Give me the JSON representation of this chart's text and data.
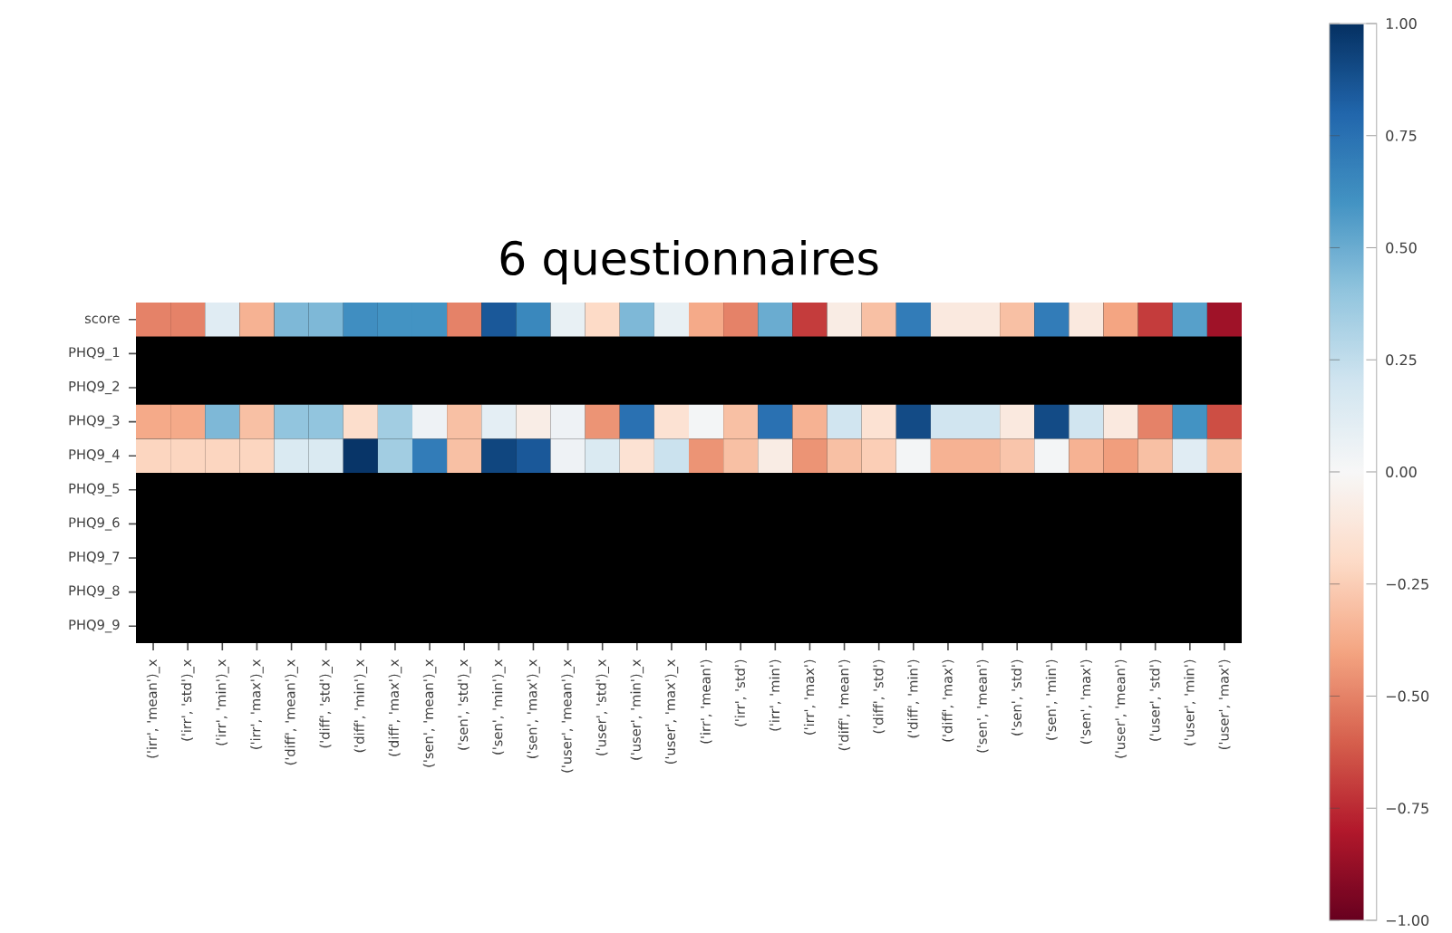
{
  "chart_data": {
    "type": "heatmap",
    "title": "6 questionnaires",
    "categories": [
      "('irr', 'mean')_x",
      "('irr', 'std')_x",
      "('irr', 'min')_x",
      "('irr', 'max')_x",
      "('diff', 'mean')_x",
      "('diff', 'std')_x",
      "('diff', 'min')_x",
      "('diff', 'max')_x",
      "('sen', 'mean')_x",
      "('sen', 'std')_x",
      "('sen', 'min')_x",
      "('sen', 'max')_x",
      "('user', 'mean')_x",
      "('user', 'std')_x",
      "('user', 'min')_x",
      "('user', 'max')_x",
      "('irr', 'mean')",
      "('irr', 'std')",
      "('irr', 'min')",
      "('irr', 'max')",
      "('diff', 'mean')",
      "('diff', 'std')",
      "('diff', 'min')",
      "('diff', 'max')",
      "('sen', 'mean')",
      "('sen', 'std')",
      "('sen', 'min')",
      "('sen', 'max')",
      "('user', 'mean')",
      "('user', 'std')",
      "('user', 'min')",
      "('user', 'max')"
    ],
    "y_categories": [
      "score",
      "PHQ9_1",
      "PHQ9_2",
      "PHQ9_3",
      "PHQ9_4",
      "PHQ9_5",
      "PHQ9_6",
      "PHQ9_7",
      "PHQ9_8",
      "PHQ9_9"
    ],
    "cells": [
      [
        -0.5,
        -0.5,
        0.12,
        -0.35,
        0.45,
        0.45,
        0.62,
        0.6,
        0.6,
        -0.5,
        0.85,
        0.65,
        0.08,
        -0.2,
        0.45,
        0.08,
        -0.38,
        -0.5,
        0.5,
        -0.7,
        -0.08,
        -0.3,
        0.7,
        -0.1,
        -0.1,
        -0.3,
        0.7,
        -0.1,
        -0.4,
        -0.7,
        0.55,
        -0.85
      ],
      [
        null,
        null,
        null,
        null,
        null,
        null,
        null,
        null,
        null,
        null,
        null,
        null,
        null,
        null,
        null,
        null,
        null,
        null,
        null,
        null,
        null,
        null,
        null,
        null,
        null,
        null,
        null,
        null,
        null,
        null,
        null,
        null
      ],
      [
        null,
        null,
        null,
        null,
        null,
        null,
        null,
        null,
        null,
        null,
        null,
        null,
        null,
        null,
        null,
        null,
        null,
        null,
        null,
        null,
        null,
        null,
        null,
        null,
        null,
        null,
        null,
        null,
        null,
        null,
        null,
        null
      ],
      [
        -0.38,
        -0.38,
        0.45,
        -0.3,
        0.4,
        0.4,
        -0.18,
        0.35,
        0.05,
        -0.3,
        0.1,
        -0.07,
        0.05,
        -0.45,
        0.75,
        -0.15,
        0.02,
        -0.3,
        0.75,
        -0.35,
        0.2,
        -0.15,
        0.9,
        0.2,
        0.2,
        -0.1,
        0.9,
        0.2,
        -0.1,
        -0.5,
        0.6,
        -0.65
      ],
      [
        -0.22,
        -0.22,
        -0.22,
        -0.22,
        0.15,
        0.15,
        0.98,
        0.35,
        0.7,
        -0.3,
        0.92,
        0.85,
        0.05,
        0.15,
        -0.15,
        0.22,
        -0.45,
        -0.3,
        -0.08,
        -0.45,
        -0.3,
        -0.25,
        0.02,
        -0.35,
        -0.35,
        -0.28,
        0.02,
        -0.35,
        -0.42,
        -0.3,
        0.12,
        -0.3
      ],
      [
        null,
        null,
        null,
        null,
        null,
        null,
        null,
        null,
        null,
        null,
        null,
        null,
        null,
        null,
        null,
        null,
        null,
        null,
        null,
        null,
        null,
        null,
        null,
        null,
        null,
        null,
        null,
        null,
        null,
        null,
        null,
        null
      ],
      [
        null,
        null,
        null,
        null,
        null,
        null,
        null,
        null,
        null,
        null,
        null,
        null,
        null,
        null,
        null,
        null,
        null,
        null,
        null,
        null,
        null,
        null,
        null,
        null,
        null,
        null,
        null,
        null,
        null,
        null,
        null,
        null
      ],
      [
        null,
        null,
        null,
        null,
        null,
        null,
        null,
        null,
        null,
        null,
        null,
        null,
        null,
        null,
        null,
        null,
        null,
        null,
        null,
        null,
        null,
        null,
        null,
        null,
        null,
        null,
        null,
        null,
        null,
        null,
        null,
        null
      ],
      [
        null,
        null,
        null,
        null,
        null,
        null,
        null,
        null,
        null,
        null,
        null,
        null,
        null,
        null,
        null,
        null,
        null,
        null,
        null,
        null,
        null,
        null,
        null,
        null,
        null,
        null,
        null,
        null,
        null,
        null,
        null,
        null
      ],
      [
        null,
        null,
        null,
        null,
        null,
        null,
        null,
        null,
        null,
        null,
        null,
        null,
        null,
        null,
        null,
        null,
        null,
        null,
        null,
        null,
        null,
        null,
        null,
        null,
        null,
        null,
        null,
        null,
        null,
        null,
        null,
        null
      ]
    ],
    "clim": [
      -1,
      1
    ],
    "cticks": [
      {
        "value": -1,
        "label": "−1.00"
      },
      {
        "value": -0.75,
        "label": "−0.75"
      },
      {
        "value": -0.5,
        "label": "−0.50"
      },
      {
        "value": -0.25,
        "label": "−0.25"
      },
      {
        "value": 0,
        "label": "0.00"
      },
      {
        "value": 0.25,
        "label": "0.25"
      },
      {
        "value": 0.5,
        "label": "0.50"
      },
      {
        "value": 0.75,
        "label": "0.75"
      },
      {
        "value": 1,
        "label": "1.00"
      }
    ]
  }
}
